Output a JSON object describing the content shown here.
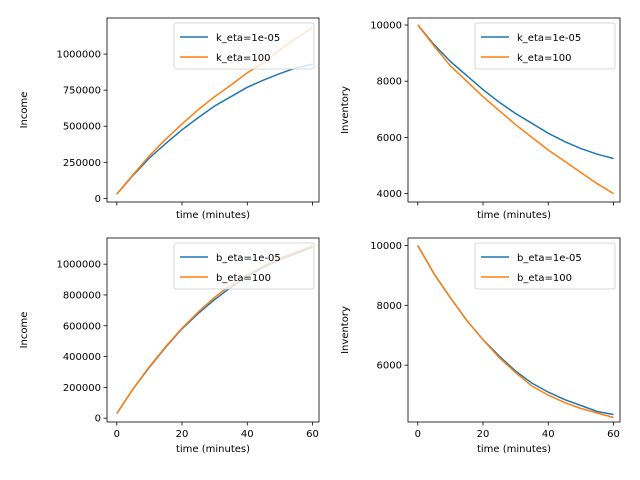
{
  "chart_data": [
    {
      "type": "line",
      "xlabel": "time (minutes)",
      "ylabel": "Income",
      "xlim": [
        -3,
        62
      ],
      "ylim": [
        -25000,
        1250000
      ],
      "xticks": [
        0,
        20,
        40,
        60
      ],
      "xtick_labels_visible": false,
      "yticks": [
        0,
        250000,
        500000,
        750000,
        1000000
      ],
      "ytick_labels": [
        "0",
        "250000",
        "500000",
        "750000",
        "1000000"
      ],
      "legend_position": "top-right",
      "series": [
        {
          "name": "k_eta=1e-05",
          "color": "#1f77b4",
          "x": [
            0,
            5,
            10,
            15,
            20,
            25,
            30,
            35,
            40,
            45,
            50,
            55,
            60
          ],
          "values": [
            30000,
            160000,
            280000,
            380000,
            475000,
            560000,
            640000,
            705000,
            770000,
            820000,
            865000,
            905000,
            930000
          ]
        },
        {
          "name": "k_eta=100",
          "color": "#ff7f0e",
          "x": [
            0,
            5,
            10,
            15,
            20,
            25,
            30,
            35,
            40,
            45,
            50,
            55,
            60
          ],
          "values": [
            30000,
            165000,
            295000,
            410000,
            515000,
            615000,
            705000,
            785000,
            870000,
            940000,
            1030000,
            1110000,
            1185000
          ]
        }
      ]
    },
    {
      "type": "line",
      "xlabel": "time (minutes)",
      "ylabel": "Inventory",
      "xlim": [
        -3,
        62
      ],
      "ylim": [
        3700,
        10250
      ],
      "xticks": [
        0,
        20,
        40,
        60
      ],
      "xtick_labels_visible": false,
      "yticks": [
        4000,
        6000,
        8000,
        10000
      ],
      "ytick_labels": [
        "4000",
        "6000",
        "8000",
        "10000"
      ],
      "legend_position": "top-right",
      "series": [
        {
          "name": "k_eta=1e-05",
          "color": "#1f77b4",
          "x": [
            0,
            5,
            10,
            15,
            20,
            25,
            30,
            35,
            40,
            45,
            50,
            55,
            60
          ],
          "values": [
            10000,
            9300,
            8700,
            8200,
            7700,
            7250,
            6850,
            6500,
            6150,
            5850,
            5600,
            5400,
            5250
          ]
        },
        {
          "name": "k_eta=100",
          "color": "#ff7f0e",
          "x": [
            0,
            5,
            10,
            15,
            20,
            25,
            30,
            35,
            40,
            45,
            50,
            55,
            60
          ],
          "values": [
            10000,
            9250,
            8550,
            8000,
            7450,
            6950,
            6450,
            6000,
            5550,
            5150,
            4750,
            4350,
            4000
          ]
        }
      ]
    },
    {
      "type": "line",
      "xlabel": "time (minutes)",
      "ylabel": "Income",
      "xlim": [
        -3,
        62
      ],
      "ylim": [
        -25000,
        1170000
      ],
      "xticks": [
        0,
        20,
        40,
        60
      ],
      "xtick_labels": [
        "0",
        "20",
        "40",
        "60"
      ],
      "yticks": [
        0,
        200000,
        400000,
        600000,
        800000,
        1000000
      ],
      "ytick_labels": [
        "0",
        "200000",
        "400000",
        "600000",
        "800000",
        "1000000"
      ],
      "legend_position": "top-right",
      "series": [
        {
          "name": "b_eta=1e-05",
          "color": "#1f77b4",
          "x": [
            0,
            5,
            10,
            15,
            20,
            25,
            30,
            35,
            40,
            45,
            50,
            55,
            60
          ],
          "values": [
            30000,
            190000,
            330000,
            460000,
            580000,
            680000,
            770000,
            850000,
            920000,
            980000,
            1030000,
            1070000,
            1110000
          ]
        },
        {
          "name": "b_eta=100",
          "color": "#ff7f0e",
          "x": [
            0,
            5,
            10,
            15,
            20,
            25,
            30,
            35,
            40,
            45,
            50,
            55,
            60
          ],
          "values": [
            30000,
            190000,
            335000,
            465000,
            585000,
            690000,
            785000,
            865000,
            930000,
            990000,
            1040000,
            1080000,
            1120000
          ]
        }
      ]
    },
    {
      "type": "line",
      "xlabel": "time (minutes)",
      "ylabel": "Inventory",
      "xlim": [
        -3,
        62
      ],
      "ylim": [
        4100,
        10250
      ],
      "xticks": [
        0,
        20,
        40,
        60
      ],
      "xtick_labels": [
        "0",
        "20",
        "40",
        "60"
      ],
      "yticks": [
        6000,
        8000,
        10000
      ],
      "ytick_labels": [
        "6000",
        "8000",
        "10000"
      ],
      "legend_position": "top-right",
      "series": [
        {
          "name": "b_eta=1e-05",
          "color": "#1f77b4",
          "x": [
            0,
            5,
            10,
            15,
            20,
            25,
            30,
            35,
            40,
            45,
            50,
            55,
            60
          ],
          "values": [
            10000,
            9050,
            8250,
            7500,
            6850,
            6300,
            5800,
            5400,
            5100,
            4850,
            4650,
            4450,
            4350
          ]
        },
        {
          "name": "b_eta=100",
          "color": "#ff7f0e",
          "x": [
            0,
            5,
            10,
            15,
            20,
            25,
            30,
            35,
            40,
            45,
            50,
            55,
            60
          ],
          "values": [
            10000,
            9050,
            8250,
            7500,
            6850,
            6250,
            5750,
            5300,
            5000,
            4750,
            4550,
            4400,
            4250
          ]
        }
      ]
    }
  ]
}
